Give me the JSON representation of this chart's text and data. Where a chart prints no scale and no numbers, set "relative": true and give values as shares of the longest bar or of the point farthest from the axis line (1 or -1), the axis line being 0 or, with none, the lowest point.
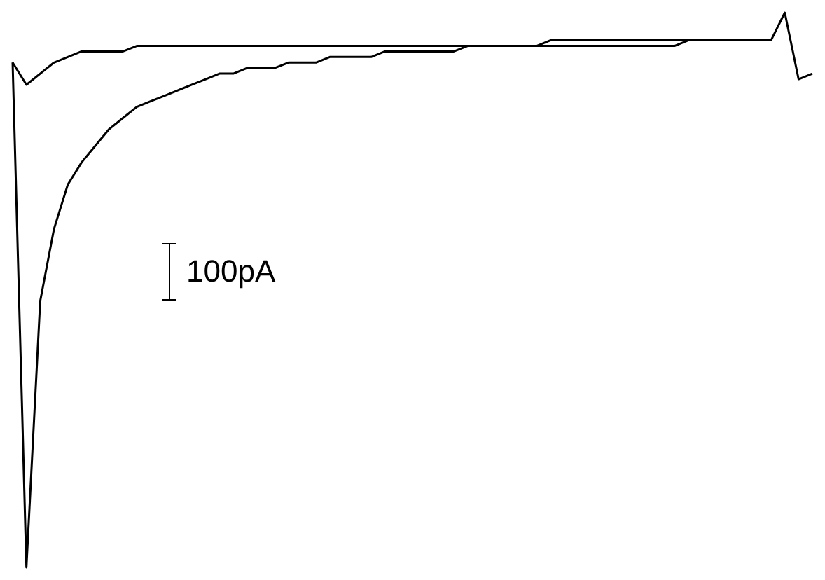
{
  "chart_data": {
    "type": "line",
    "relative": true,
    "annotations": [
      "100pA"
    ],
    "categories": [
      null,
      null,
      null,
      null,
      null,
      null,
      null,
      null,
      null,
      null,
      null,
      null,
      null,
      null,
      null,
      null,
      null,
      null,
      null,
      null,
      null,
      null,
      null,
      null,
      null,
      null,
      null,
      null,
      null,
      null,
      null,
      null,
      null,
      null,
      null,
      null,
      null,
      null,
      null,
      null,
      null,
      null,
      null,
      null,
      null,
      null,
      null,
      null,
      null,
      null,
      null,
      null,
      null,
      null,
      null,
      null,
      null,
      null,
      null
    ],
    "series": [
      {
        "color": "#000000",
        "values": [
          0.91,
          0,
          0.48,
          0.61,
          0.69,
          0.73,
          0.76,
          0.79,
          0.81,
          0.83,
          0.84,
          0.85,
          0.86,
          0.87,
          0.88,
          0.89,
          0.89,
          0.9,
          0.9,
          0.9,
          0.91,
          0.91,
          0.91,
          0.92,
          0.92,
          0.92,
          0.92,
          0.93,
          0.93,
          0.93,
          0.93,
          0.93,
          0.93,
          0.94,
          0.94,
          0.94,
          0.94,
          0.94,
          0.94,
          0.94,
          0.94,
          0.94,
          0.94,
          0.94,
          0.94,
          0.94,
          0.94,
          0.94,
          0.94,
          0.95,
          0.95,
          0.95,
          0.95,
          0.95,
          0.95,
          0.95,
          1.0,
          0.88,
          0.89
        ]
      },
      {
        "color": "#000000",
        "values": [
          0.91,
          0.87,
          0.89,
          0.91,
          0.92,
          0.93,
          0.93,
          0.93,
          0.93,
          0.94,
          0.94,
          0.94,
          0.94,
          0.94,
          0.94,
          0.94,
          0.94,
          0.94,
          0.94,
          0.94,
          0.94,
          0.94,
          0.94,
          0.94,
          0.94,
          0.94,
          0.94,
          0.94,
          0.94,
          0.94,
          0.94,
          0.94,
          0.94,
          0.94,
          0.94,
          0.94,
          0.94,
          0.94,
          0.94,
          0.95,
          0.95,
          0.95,
          0.95,
          0.95,
          0.95,
          0.95,
          0.95,
          0.95,
          0.95,
          0.95,
          0.95,
          0.95,
          0.95,
          0.95,
          0.95,
          0.95,
          null,
          null,
          null
        ]
      }
    ]
  }
}
